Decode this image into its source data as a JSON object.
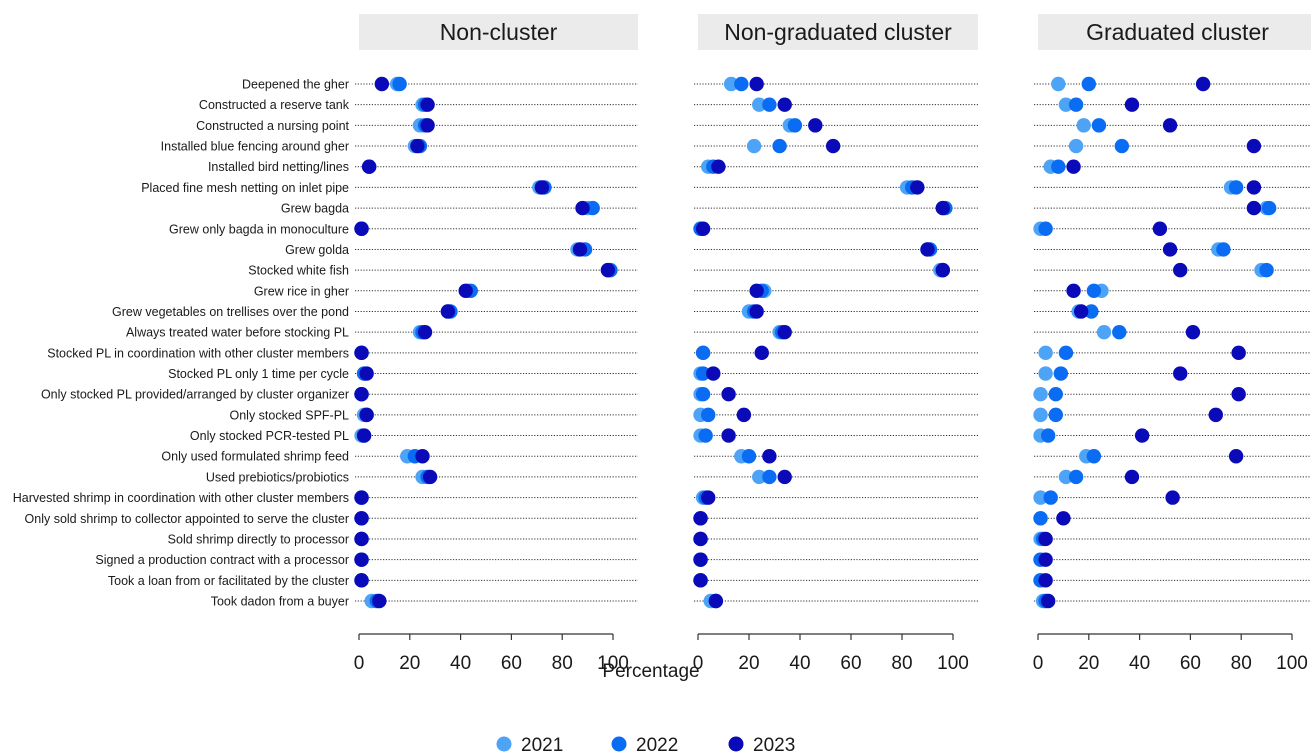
{
  "chart_data": {
    "type": "dot",
    "xlabel": "Percentage",
    "xlim": [
      0,
      100
    ],
    "xticks": [
      0,
      20,
      40,
      60,
      80,
      100
    ],
    "legend_position": "bottom",
    "series": [
      {
        "name": "2021",
        "color": "#4da3f5"
      },
      {
        "name": "2022",
        "color": "#0a6cf2"
      },
      {
        "name": "2023",
        "color": "#0a0ab8"
      }
    ],
    "categories": [
      "Deepened the gher",
      "Constructed a reserve tank",
      "Constructed a nursing point",
      "Installed blue fencing around gher",
      "Installed bird netting/lines",
      "Placed fine mesh netting on inlet pipe",
      "Grew bagda",
      "Grew only bagda in monoculture",
      "Grew golda",
      "Stocked white fish",
      "Grew rice in gher",
      "Grew vegetables on trellises over the pond",
      "Always treated water before stocking PL",
      "Stocked PL in coordination with other cluster members",
      "Stocked PL only 1 time per cycle",
      "Only stocked PL provided/arranged by cluster organizer",
      "Only stocked SPF-PL",
      "Only stocked PCR-tested PL",
      "Only used formulated shrimp feed",
      "Used prebiotics/probiotics",
      "Harvested shrimp in coordination with other cluster members",
      "Only sold shrimp to collector appointed to serve the cluster",
      "Sold shrimp directly to processor",
      "Signed a production contract with a processor",
      "Took a loan from or facilitated by the cluster",
      "Took dadon from a buyer"
    ],
    "panels": [
      {
        "title": "Non-cluster",
        "values": [
          [
            15,
            16,
            9
          ],
          [
            25,
            26,
            27
          ],
          [
            24,
            26,
            27
          ],
          [
            22,
            24,
            23
          ],
          [
            4,
            4,
            4
          ],
          [
            71,
            73,
            72
          ],
          [
            90,
            92,
            88
          ],
          [
            1,
            1,
            1
          ],
          [
            86,
            89,
            87
          ],
          [
            98,
            99,
            98
          ],
          [
            43,
            44,
            42
          ],
          [
            35,
            36,
            35
          ],
          [
            24,
            25,
            26
          ],
          [
            1,
            1,
            1
          ],
          [
            2,
            2,
            3
          ],
          [
            1,
            1,
            1
          ],
          [
            2,
            3,
            3
          ],
          [
            1,
            2,
            2
          ],
          [
            19,
            22,
            25
          ],
          [
            25,
            27,
            28
          ],
          [
            1,
            1,
            1
          ],
          [
            1,
            1,
            1
          ],
          [
            1,
            1,
            1
          ],
          [
            1,
            1,
            1
          ],
          [
            1,
            1,
            1
          ],
          [
            5,
            7,
            8
          ]
        ]
      },
      {
        "title": "Non-graduated cluster",
        "values": [
          [
            13,
            17,
            23
          ],
          [
            24,
            28,
            34
          ],
          [
            36,
            38,
            46
          ],
          [
            22,
            32,
            53
          ],
          [
            4,
            6,
            8
          ],
          [
            82,
            84,
            86
          ],
          [
            96,
            97,
            96
          ],
          [
            1,
            1,
            2
          ],
          [
            90,
            91,
            90
          ],
          [
            95,
            96,
            96
          ],
          [
            26,
            25,
            23
          ],
          [
            20,
            22,
            23
          ],
          [
            32,
            33,
            34
          ],
          [
            2,
            2,
            25
          ],
          [
            1,
            2,
            6
          ],
          [
            1,
            2,
            12
          ],
          [
            1,
            4,
            18
          ],
          [
            1,
            3,
            12
          ],
          [
            17,
            20,
            28
          ],
          [
            24,
            28,
            34
          ],
          [
            2,
            3,
            4
          ],
          [
            1,
            1,
            1
          ],
          [
            1,
            1,
            1
          ],
          [
            1,
            1,
            1
          ],
          [
            1,
            1,
            1
          ],
          [
            5,
            7,
            7
          ]
        ]
      },
      {
        "title": "Graduated cluster",
        "values": [
          [
            8,
            20,
            65
          ],
          [
            11,
            15,
            37
          ],
          [
            18,
            24,
            52
          ],
          [
            15,
            33,
            85
          ],
          [
            5,
            8,
            14
          ],
          [
            76,
            78,
            85
          ],
          [
            90,
            91,
            85
          ],
          [
            1,
            3,
            48
          ],
          [
            71,
            73,
            52
          ],
          [
            88,
            90,
            56
          ],
          [
            25,
            22,
            14
          ],
          [
            16,
            21,
            17
          ],
          [
            26,
            32,
            61
          ],
          [
            3,
            11,
            79
          ],
          [
            3,
            9,
            56
          ],
          [
            1,
            7,
            79
          ],
          [
            1,
            7,
            70
          ],
          [
            1,
            4,
            41
          ],
          [
            19,
            22,
            78
          ],
          [
            11,
            15,
            37
          ],
          [
            1,
            5,
            53
          ],
          [
            1,
            1,
            10
          ],
          [
            1,
            2,
            3
          ],
          [
            1,
            1,
            3
          ],
          [
            1,
            1,
            3
          ],
          [
            2,
            3,
            4
          ]
        ]
      }
    ]
  }
}
